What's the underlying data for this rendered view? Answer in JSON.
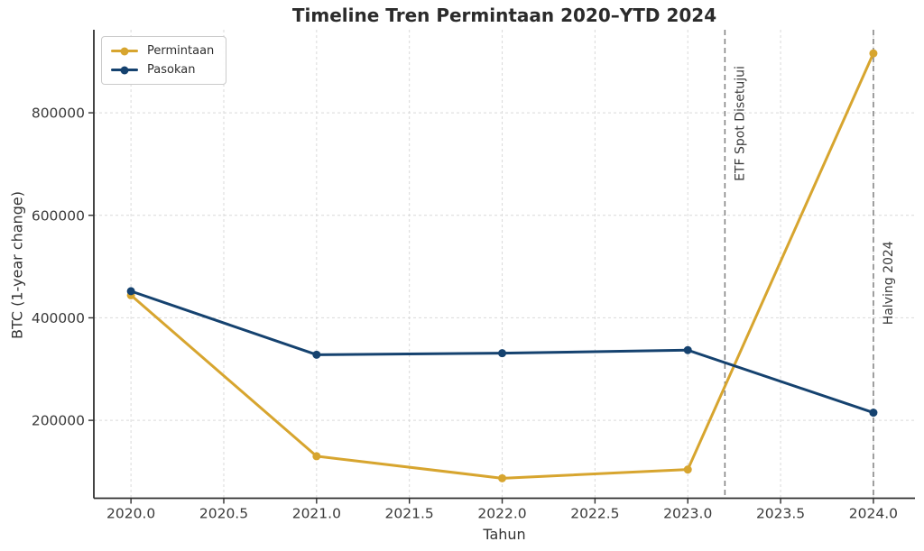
{
  "chart_data": {
    "type": "line",
    "title": "Timeline Tren Permintaan 2020–YTD 2024",
    "xlabel": "Tahun",
    "ylabel": "BTC (1-year change)",
    "x": [
      2020,
      2021,
      2022,
      2023,
      2024
    ],
    "series": [
      {
        "name": "Permintaan",
        "color": "#D7A52F",
        "marker": "circle",
        "values": [
          444000,
          130000,
          87000,
          104000,
          916000
        ]
      },
      {
        "name": "Pasokan",
        "color": "#15426F",
        "marker": "circle",
        "values": [
          452000,
          328000,
          331000,
          337000,
          215000
        ]
      }
    ],
    "xticks": {
      "values": [
        2020.0,
        2020.5,
        2021.0,
        2021.5,
        2022.0,
        2022.5,
        2023.0,
        2023.5,
        2024.0
      ],
      "labels": [
        "2020.0",
        "2020.5",
        "2021.0",
        "2021.5",
        "2022.0",
        "2022.5",
        "2023.0",
        "2023.5",
        "2024.0"
      ]
    },
    "yticks": {
      "values": [
        200000,
        400000,
        600000,
        800000
      ],
      "labels": [
        "200000",
        "400000",
        "600000",
        "800000"
      ]
    },
    "xlim": [
      2019.8,
      2024.224
    ],
    "ylim": [
      48000,
      962000
    ],
    "grid": {
      "visible": true,
      "style": "dashed",
      "color": "#d9d9d9"
    },
    "legend": {
      "position": "upper-left"
    },
    "annotations": [
      {
        "x": 2023.2,
        "label": "ETF Spot Disetujui",
        "label_y_value": 779000,
        "line_color": "#7f7f7f",
        "line_style": "dashed"
      },
      {
        "x": 2024.0,
        "label": "Halving 2024",
        "label_y_value": 468000,
        "line_color": "#7f7f7f",
        "line_style": "dashed"
      }
    ],
    "colors": {
      "axis": "#2f2f2f",
      "tick_text": "#3a3a3a",
      "annotation_text": "#3c3c3c",
      "title_text": "#2b2b2b"
    }
  }
}
